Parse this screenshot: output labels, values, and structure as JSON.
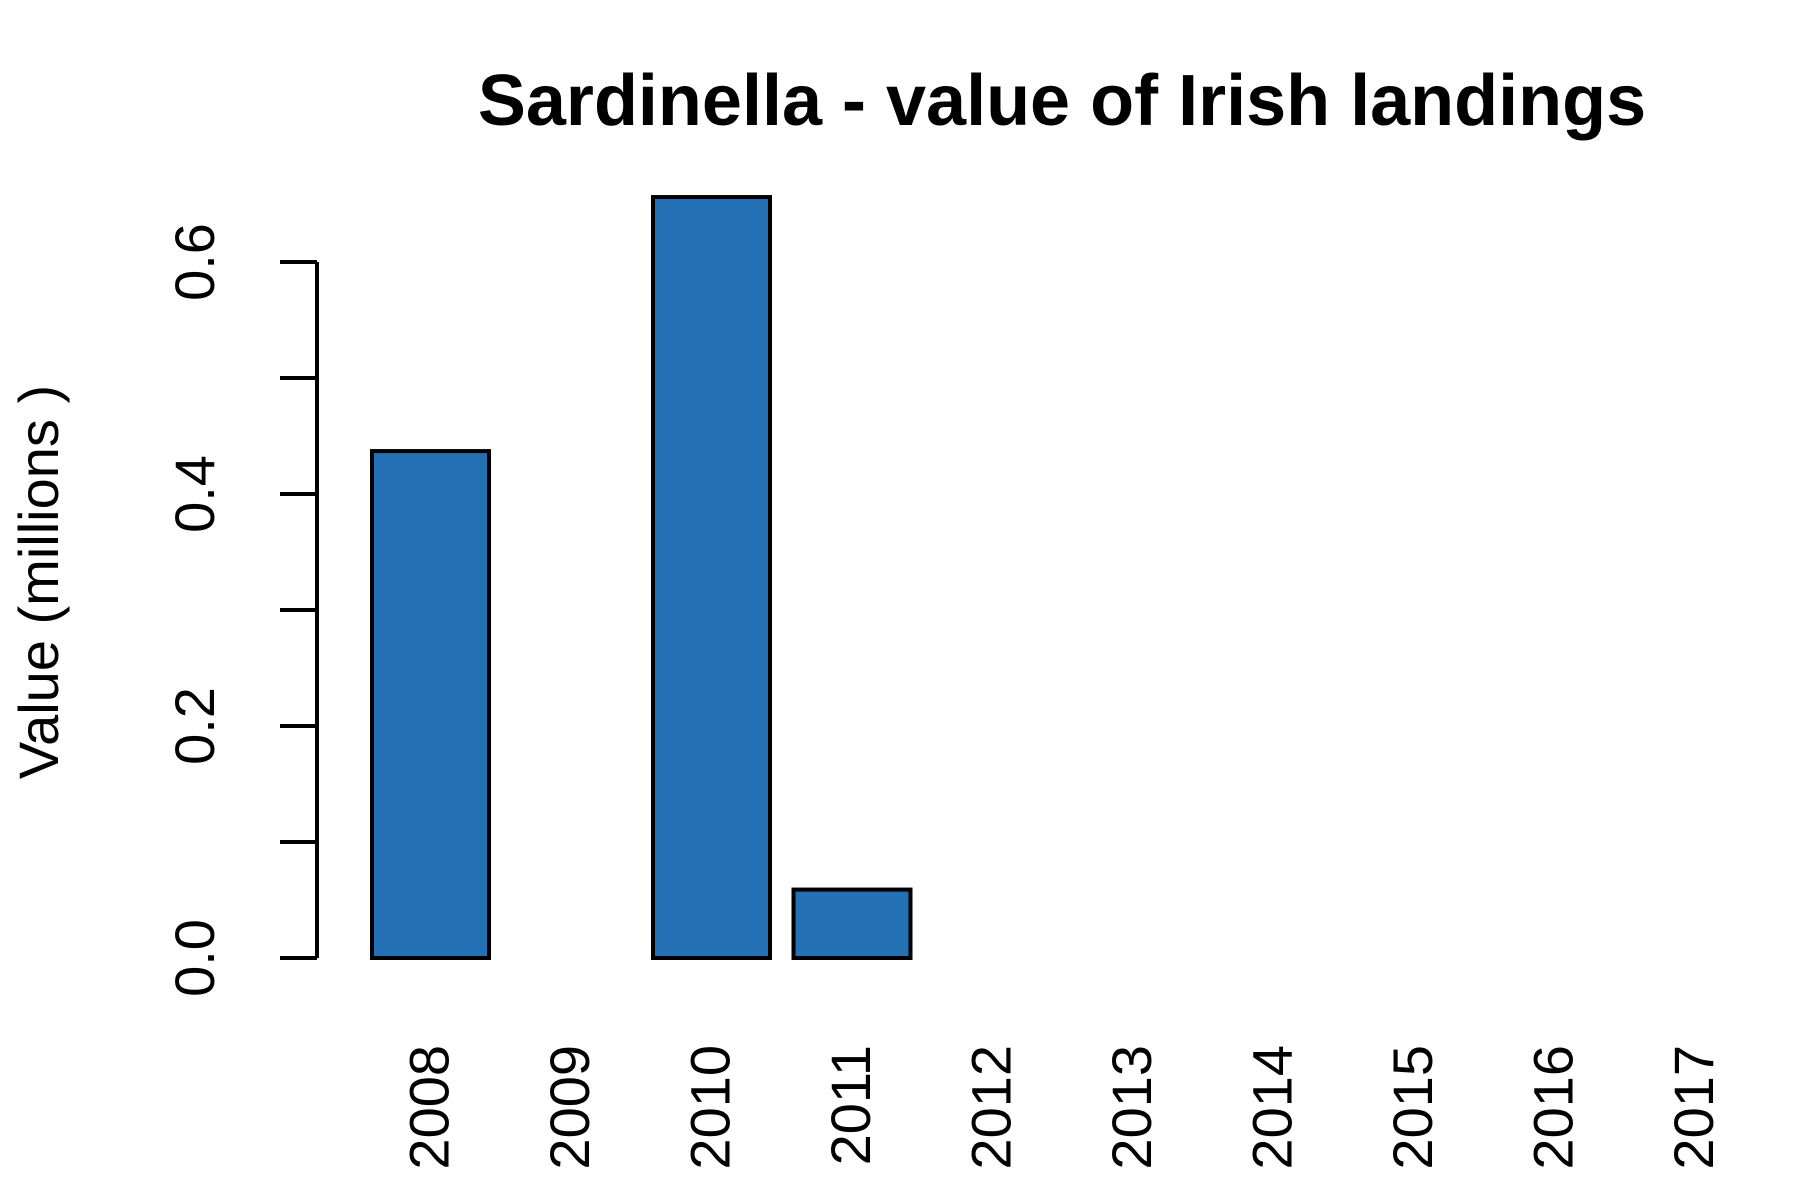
{
  "chart_data": {
    "type": "bar",
    "title": "Sardinella - value of Irish landings",
    "xlabel": "",
    "ylabel": "Value (millions )",
    "categories": [
      "2008",
      "2009",
      "2010",
      "2011",
      "2012",
      "2013",
      "2014",
      "2015",
      "2016",
      "2017"
    ],
    "values": [
      0.437,
      0,
      0.656,
      0.059,
      0,
      0,
      0,
      0,
      0,
      0
    ],
    "yticks": [
      0.0,
      0.1,
      0.2,
      0.3,
      0.4,
      0.5,
      0.6
    ],
    "ytick_labels": [
      "0.0",
      "",
      "0.2",
      "",
      "0.4",
      "",
      "0.6"
    ],
    "ylim": [
      0,
      0.656
    ],
    "grid": false,
    "bar_color": "#2470b4",
    "border_color": "#000000"
  }
}
